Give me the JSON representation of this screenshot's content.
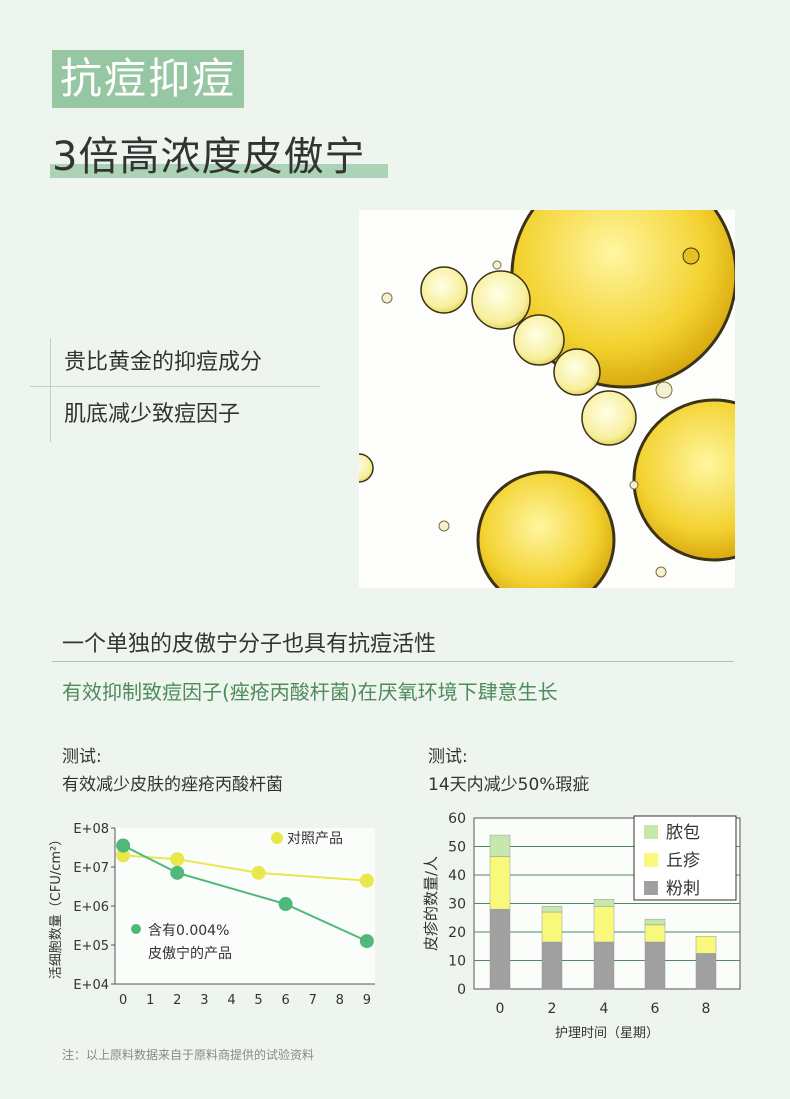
{
  "header": {
    "title": "抗痘抑痘",
    "subtitle": "3倍高浓度皮傲宁"
  },
  "features": [
    "贵比黄金的抑痘成分",
    "肌底减少致痘因子"
  ],
  "section": {
    "heading": "一个单独的皮傲宁分子也具有抗痘活性",
    "subheading": "有效抑制致痘因子(痤疮丙酸杆菌)在厌氧环境下肆意生长"
  },
  "test_left": {
    "label": "测试:",
    "desc": "有效减少皮肤的痤疮丙酸杆菌"
  },
  "test_right": {
    "label": "测试:",
    "desc": "14天内减少50%瑕疵"
  },
  "note": "注：以上原料数据来自于原料商提供的试验资料",
  "colors": {
    "accent": "#96c7a2",
    "control": "#e8e84a",
    "product": "#4fb87a",
    "bar_nodule": "#c6e8ac",
    "bar_papule": "#f8f87a",
    "bar_comedo": "#a0a0a0"
  },
  "chart_data": [
    {
      "type": "line",
      "ylabel": "活细胞数量（CFU/cm²）",
      "x_ticks": [
        "0",
        "1",
        "2",
        "3",
        "4",
        "5",
        "6",
        "7",
        "8",
        "9"
      ],
      "y_ticks": [
        "E+08",
        "E+07",
        "E+06",
        "E+05",
        "E+04"
      ],
      "y_scale": "log",
      "series": [
        {
          "name": "对照产品",
          "x": [
            0,
            2,
            5,
            9
          ],
          "y": [
            7.3,
            7.2,
            6.85,
            6.65
          ]
        },
        {
          "name": "含有0.004%\n皮傲宁的产品",
          "x": [
            0,
            2,
            6,
            9
          ],
          "y": [
            7.55,
            6.85,
            6.05,
            5.1
          ]
        }
      ]
    },
    {
      "type": "bar",
      "stacked": true,
      "xlabel": "护理时间（星期）",
      "ylabel": "皮疹的数量/人",
      "ylim": [
        0,
        60
      ],
      "y_ticks": [
        "60",
        "50",
        "40",
        "30",
        "20",
        "10",
        "0"
      ],
      "categories": [
        "0",
        "2",
        "4",
        "6",
        "8"
      ],
      "series": [
        {
          "name": "粉刺",
          "values": [
            28,
            16.5,
            16.5,
            16.5,
            12.5
          ]
        },
        {
          "name": "丘疹",
          "values": [
            18.5,
            10.5,
            12.5,
            6,
            6
          ]
        },
        {
          "name": "脓包",
          "values": [
            7.5,
            2,
            2.5,
            2,
            0
          ]
        }
      ]
    }
  ]
}
